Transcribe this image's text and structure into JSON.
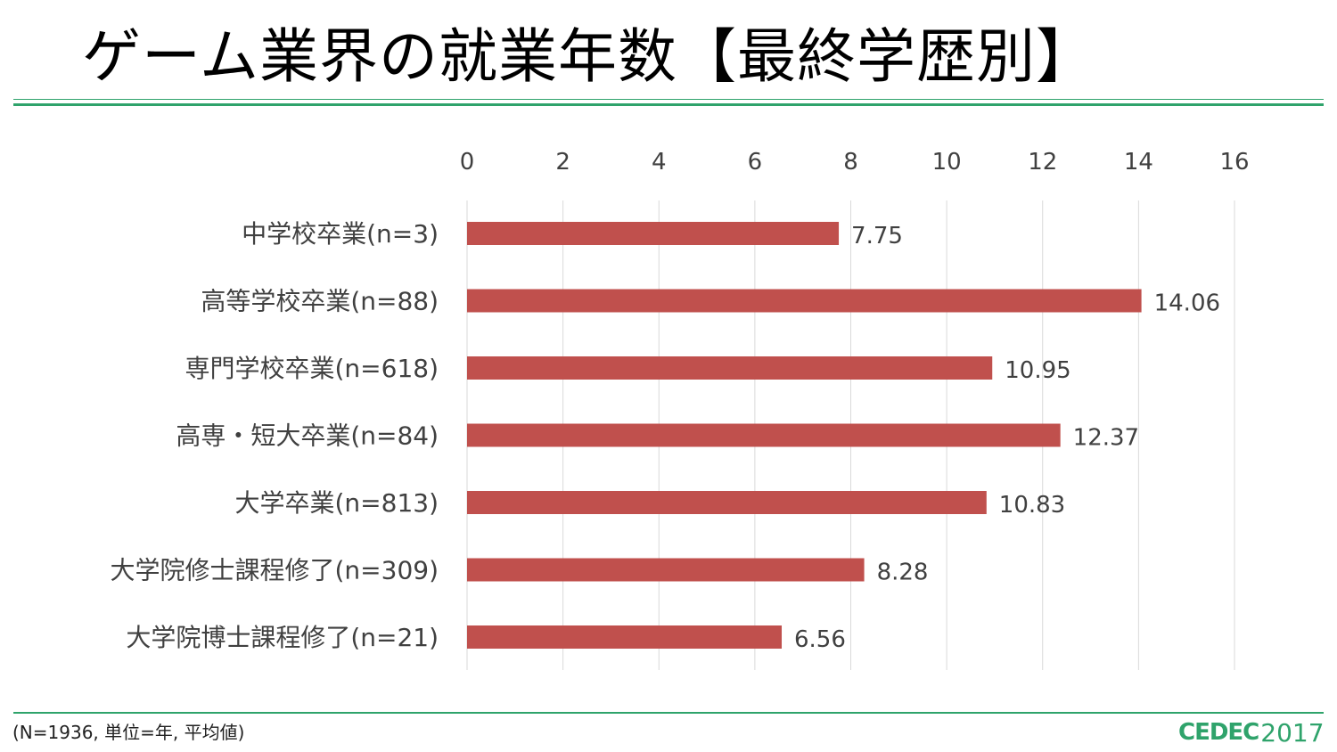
{
  "title": "ゲーム業界の就業年数【最終学歴別】",
  "footnote": "(N=1936, 単位=年, 平均値)",
  "logo": {
    "brand": "CEDEC",
    "year": "2017",
    "color": "#2fa36b"
  },
  "colors": {
    "bar": "#c0504d",
    "rule": "#2fa36b",
    "grid": "#d9d9d9",
    "text": "#404040"
  },
  "chart_data": {
    "type": "bar",
    "orientation": "horizontal",
    "categories": [
      "中学校卒業(n=3)",
      "高等学校卒業(n=88)",
      "専門学校卒業(n=618)",
      "高専・短大卒業(n=84)",
      "大学卒業(n=813)",
      "大学院修士課程修了(n=309)",
      "大学院博士課程修了(n=21)"
    ],
    "values": [
      7.75,
      14.06,
      10.95,
      12.37,
      10.83,
      8.28,
      6.56
    ],
    "value_labels": [
      "7.75",
      "14.06",
      "10.95",
      "12.37",
      "10.83",
      "8.28",
      "6.56"
    ],
    "xlim": [
      0,
      16
    ],
    "xticks": [
      0,
      2,
      4,
      6,
      8,
      10,
      12,
      14,
      16
    ],
    "axis_position": "top",
    "grid": true,
    "legend": false
  }
}
